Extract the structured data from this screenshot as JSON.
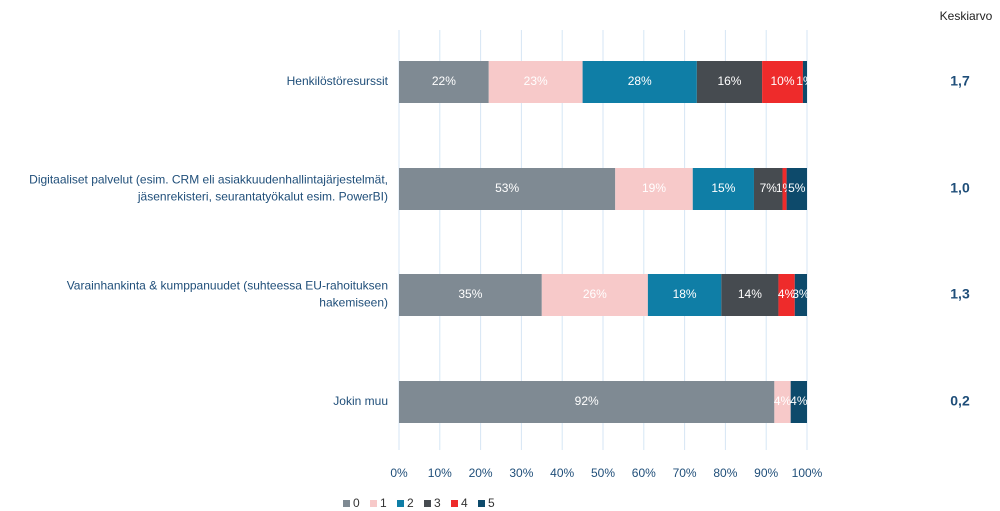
{
  "chart_data": {
    "type": "stacked-bar-horizontal",
    "categories": [
      [
        "Henkilöstöresurssit"
      ],
      [
        "Digitaaliset palvelut (esim. CRM eli asiakkuudenhallintajärjestelmät,",
        "jäsenrekisteri, seurantatyökalut esim. PowerBI)"
      ],
      [
        "Varainhankinta & kumppanuudet (suhteessa EU-rahoituksen",
        "hakemiseen)"
      ],
      [
        "Jokin muu"
      ]
    ],
    "series": [
      {
        "name": "0",
        "color": "#7f8a93",
        "values": [
          22,
          53,
          35,
          92
        ],
        "value_labels": [
          "22%",
          "53%",
          "35%",
          "92%"
        ]
      },
      {
        "name": "1",
        "color": "#f7c9c9",
        "values": [
          23,
          19,
          26,
          4
        ],
        "value_labels": [
          "23%",
          "19%",
          "26%",
          "4%"
        ]
      },
      {
        "name": "2",
        "color": "#0f7ea6",
        "values": [
          28,
          15,
          18,
          0
        ],
        "value_labels": [
          "28%",
          "15%",
          "18%",
          null
        ]
      },
      {
        "name": "3",
        "color": "#464b50",
        "values": [
          16,
          7,
          14,
          0
        ],
        "value_labels": [
          "16%",
          "7%",
          "14%",
          null
        ]
      },
      {
        "name": "4",
        "color": "#ee2b2b",
        "values": [
          10,
          1,
          4,
          0
        ],
        "value_labels": [
          "10%",
          "1%",
          "4%",
          null
        ]
      },
      {
        "name": "5",
        "color": "#0d4a6b",
        "values": [
          1,
          5,
          3,
          4
        ],
        "value_labels": [
          "1%",
          "5%",
          "3%",
          "4%"
        ]
      }
    ],
    "xlim": [
      0,
      100
    ],
    "xticks": [
      {
        "value": 0,
        "label": "0%"
      },
      {
        "value": 10,
        "label": "10%"
      },
      {
        "value": 20,
        "label": "20%"
      },
      {
        "value": 30,
        "label": "30%"
      },
      {
        "value": 40,
        "label": "40%"
      },
      {
        "value": 50,
        "label": "50%"
      },
      {
        "value": 60,
        "label": "60%"
      },
      {
        "value": 70,
        "label": "70%"
      },
      {
        "value": 80,
        "label": "80%"
      },
      {
        "value": 90,
        "label": "90%"
      },
      {
        "value": 100,
        "label": "100%"
      }
    ],
    "grid": true,
    "legend": "bottom",
    "averages_title": "Keskiarvo",
    "averages": [
      "1,7",
      "1,0",
      "1,3",
      "0,2"
    ]
  }
}
